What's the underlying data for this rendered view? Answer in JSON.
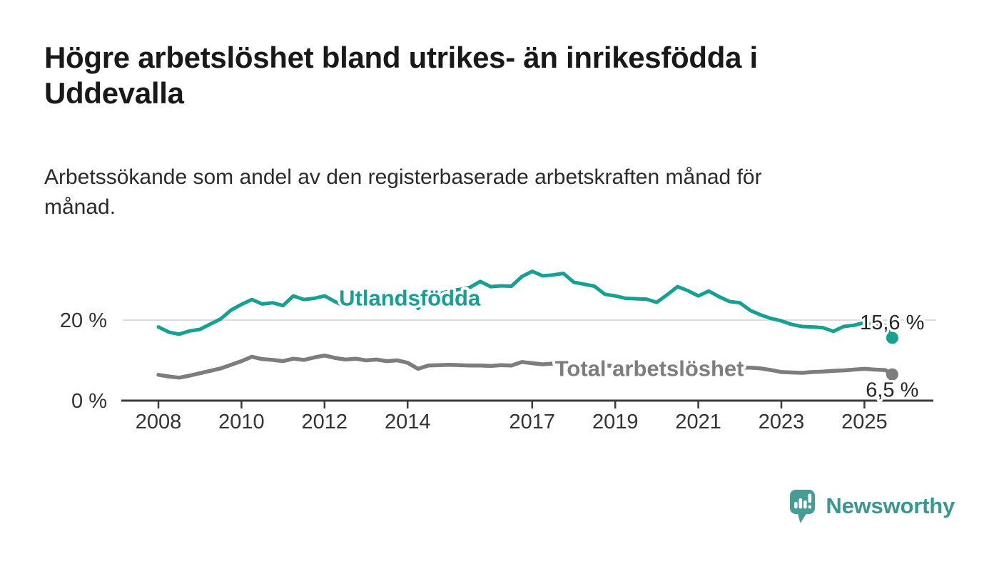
{
  "title": "Högre arbetslöshet bland utrikes- än inrikesfödda i\nUddevalla",
  "subtitle": "Arbetssökande som andel av den registerbaserade arbetskraften månad för\nmånad.",
  "logo": {
    "text": "Newsworthy",
    "icon": "newsworthy-speech-bubble-bar-chart-icon",
    "icon_color": "#449e96",
    "text_color": "#38988f"
  },
  "colors": {
    "foreign_born_line": "#15a094",
    "total_line": "#7d7d7d",
    "gridline": "#dcdcdc",
    "axis": "#3c3c3c",
    "axis_text": "#333333",
    "value_label_text": "#262626",
    "title_text": "#191919",
    "subtitle_text": "#2b2b2b"
  },
  "chart_data": {
    "type": "line",
    "title": "Högre arbetslöshet bland utrikes- än inrikesfödda i Uddevalla",
    "xlabel": "",
    "ylabel": "Arbetssökande som andel av den registerbaserade arbetskraften",
    "grid": "horizontal-only",
    "legend_position": "inline-labels",
    "ylim": [
      0,
      34
    ],
    "xlim": [
      2007.1,
      2026.7
    ],
    "y_ticks": [
      {
        "value": 20,
        "label": "20 %"
      },
      {
        "value": 0,
        "label": "0 %"
      }
    ],
    "x_ticks": [
      {
        "year": 2008,
        "label": "2008"
      },
      {
        "year": 2010,
        "label": "2010"
      },
      {
        "year": 2012,
        "label": "2012"
      },
      {
        "year": 2014,
        "label": "2014"
      },
      {
        "year": 2017,
        "label": "2017"
      },
      {
        "year": 2019,
        "label": "2019"
      },
      {
        "year": 2021,
        "label": "2021"
      },
      {
        "year": 2023,
        "label": "2023"
      },
      {
        "year": 2025,
        "label": "2025"
      }
    ],
    "series": [
      {
        "name": "Utlandsfödda",
        "color": "#15a094",
        "line_width": 5,
        "end_label": "15,6 %",
        "end_value": 15.6,
        "inline_label": {
          "year": 2012.35,
          "value": 23.6
        },
        "end_label_offset": {
          "dx": 45,
          "dy": -12
        },
        "x": [
          2008.0,
          2008.25,
          2008.5,
          2008.75,
          2009.0,
          2009.25,
          2009.5,
          2009.75,
          2010.0,
          2010.25,
          2010.5,
          2010.75,
          2011.0,
          2011.25,
          2011.5,
          2011.75,
          2012.0,
          2012.25,
          2012.5,
          2012.75,
          2013.0,
          2013.25,
          2013.5,
          2013.75,
          2014.0,
          2014.25,
          2014.5,
          2014.75,
          2015.0,
          2015.25,
          2015.5,
          2015.75,
          2016.0,
          2016.25,
          2016.5,
          2016.75,
          2017.0,
          2017.25,
          2017.5,
          2017.75,
          2018.0,
          2018.25,
          2018.5,
          2018.75,
          2019.0,
          2019.25,
          2019.5,
          2019.75,
          2020.0,
          2020.25,
          2020.5,
          2020.75,
          2021.0,
          2021.25,
          2021.5,
          2021.75,
          2022.0,
          2022.25,
          2022.5,
          2022.75,
          2023.0,
          2023.25,
          2023.5,
          2023.75,
          2024.0,
          2024.25,
          2024.5,
          2024.75,
          2025.0,
          2025.25,
          2025.5,
          2025.67
        ],
        "values": [
          18.3,
          17.0,
          16.5,
          17.3,
          17.7,
          19.0,
          20.3,
          22.5,
          23.9,
          25.1,
          24.0,
          24.3,
          23.6,
          26.0,
          25.1,
          25.4,
          26.0,
          24.6,
          23.3,
          24.5,
          25.0,
          25.3,
          24.6,
          25.0,
          25.3,
          22.9,
          25.6,
          26.5,
          27.2,
          27.6,
          28.1,
          29.6,
          28.3,
          28.5,
          28.4,
          30.8,
          32.1,
          31.0,
          31.2,
          31.6,
          29.4,
          28.9,
          28.4,
          26.4,
          26.0,
          25.4,
          25.3,
          25.2,
          24.4,
          26.3,
          28.3,
          27.3,
          26.0,
          27.2,
          25.8,
          24.6,
          24.3,
          22.4,
          21.3,
          20.4,
          19.8,
          18.9,
          18.4,
          18.3,
          18.1,
          17.2,
          18.4,
          18.7,
          19.4,
          18.8,
          18.6,
          15.6
        ]
      },
      {
        "name": "Total arbetslöshet",
        "color": "#7d7d7d",
        "line_width": 5.5,
        "end_label": "6,5 %",
        "end_value": 6.5,
        "inline_label": {
          "year": 2017.55,
          "value": 6.1
        },
        "end_label_offset": {
          "dx": 37,
          "dy": 31
        },
        "x": [
          2008.0,
          2008.25,
          2008.5,
          2008.75,
          2009.0,
          2009.25,
          2009.5,
          2009.75,
          2010.0,
          2010.25,
          2010.5,
          2010.75,
          2011.0,
          2011.25,
          2011.5,
          2011.75,
          2012.0,
          2012.25,
          2012.5,
          2012.75,
          2013.0,
          2013.25,
          2013.5,
          2013.75,
          2014.0,
          2014.25,
          2014.5,
          2014.75,
          2015.0,
          2015.25,
          2015.5,
          2015.75,
          2016.0,
          2016.25,
          2016.5,
          2016.75,
          2017.0,
          2017.25,
          2017.5,
          2017.75,
          2018.0,
          2018.25,
          2018.5,
          2018.75,
          2019.0,
          2019.25,
          2019.5,
          2019.75,
          2020.0,
          2020.25,
          2020.5,
          2020.75,
          2021.0,
          2021.25,
          2021.5,
          2021.75,
          2022.0,
          2022.25,
          2022.5,
          2022.75,
          2023.0,
          2023.25,
          2023.5,
          2023.75,
          2024.0,
          2024.25,
          2024.5,
          2024.75,
          2025.0,
          2025.25,
          2025.5,
          2025.67
        ],
        "values": [
          6.4,
          6.0,
          5.7,
          6.2,
          6.8,
          7.4,
          8.0,
          8.9,
          9.8,
          10.9,
          10.3,
          10.1,
          9.8,
          10.4,
          10.1,
          10.7,
          11.2,
          10.6,
          10.2,
          10.4,
          10.0,
          10.2,
          9.8,
          10.0,
          9.4,
          7.9,
          8.7,
          8.8,
          8.9,
          8.8,
          8.7,
          8.7,
          8.6,
          8.8,
          8.7,
          9.6,
          9.3,
          9.0,
          9.2,
          9.4,
          9.0,
          8.9,
          8.8,
          8.7,
          8.6,
          8.5,
          8.5,
          8.4,
          8.4,
          8.8,
          9.0,
          8.8,
          8.6,
          8.5,
          8.4,
          8.3,
          8.2,
          8.2,
          8.0,
          7.6,
          7.1,
          7.0,
          6.9,
          7.1,
          7.2,
          7.4,
          7.5,
          7.7,
          7.9,
          7.7,
          7.6,
          6.5
        ]
      }
    ]
  }
}
